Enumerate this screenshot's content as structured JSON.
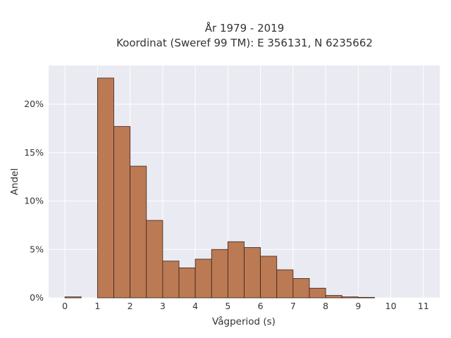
{
  "chart_data": {
    "type": "bar",
    "title": [
      "År 1979 - 2019",
      "Koordinat (Sweref 99 TM): E 356131, N 6235662"
    ],
    "xlabel": "Vågperiod (s)",
    "ylabel": "Andel",
    "x_ticks": [
      0,
      1,
      2,
      3,
      4,
      5,
      6,
      7,
      8,
      9,
      10,
      11
    ],
    "y_ticks": [
      {
        "value": 0,
        "label": "0%"
      },
      {
        "value": 5,
        "label": "5%"
      },
      {
        "value": 10,
        "label": "10%"
      },
      {
        "value": 15,
        "label": "15%"
      },
      {
        "value": 20,
        "label": "20%"
      }
    ],
    "xlim": [
      -0.5,
      11.5
    ],
    "ylim": [
      0,
      24
    ],
    "bin_width": 0.5,
    "bins": [
      {
        "start": 0.0,
        "value": 0.1
      },
      {
        "start": 0.5,
        "value": 0.0
      },
      {
        "start": 1.0,
        "value": 22.7
      },
      {
        "start": 1.5,
        "value": 17.7
      },
      {
        "start": 2.0,
        "value": 13.6
      },
      {
        "start": 2.5,
        "value": 8.0
      },
      {
        "start": 3.0,
        "value": 3.8
      },
      {
        "start": 3.5,
        "value": 3.1
      },
      {
        "start": 4.0,
        "value": 4.0
      },
      {
        "start": 4.5,
        "value": 5.0
      },
      {
        "start": 5.0,
        "value": 5.8
      },
      {
        "start": 5.5,
        "value": 5.2
      },
      {
        "start": 6.0,
        "value": 4.3
      },
      {
        "start": 6.5,
        "value": 2.9
      },
      {
        "start": 7.0,
        "value": 2.0
      },
      {
        "start": 7.5,
        "value": 1.0
      },
      {
        "start": 8.0,
        "value": 0.25
      },
      {
        "start": 8.5,
        "value": 0.1
      },
      {
        "start": 9.0,
        "value": 0.05
      }
    ],
    "grid": true,
    "colors": {
      "bar_fill": "#bb7a54",
      "bar_edge": "#3a2418",
      "plot_bg": "#eaeaf2",
      "grid": "#ffffff"
    }
  }
}
